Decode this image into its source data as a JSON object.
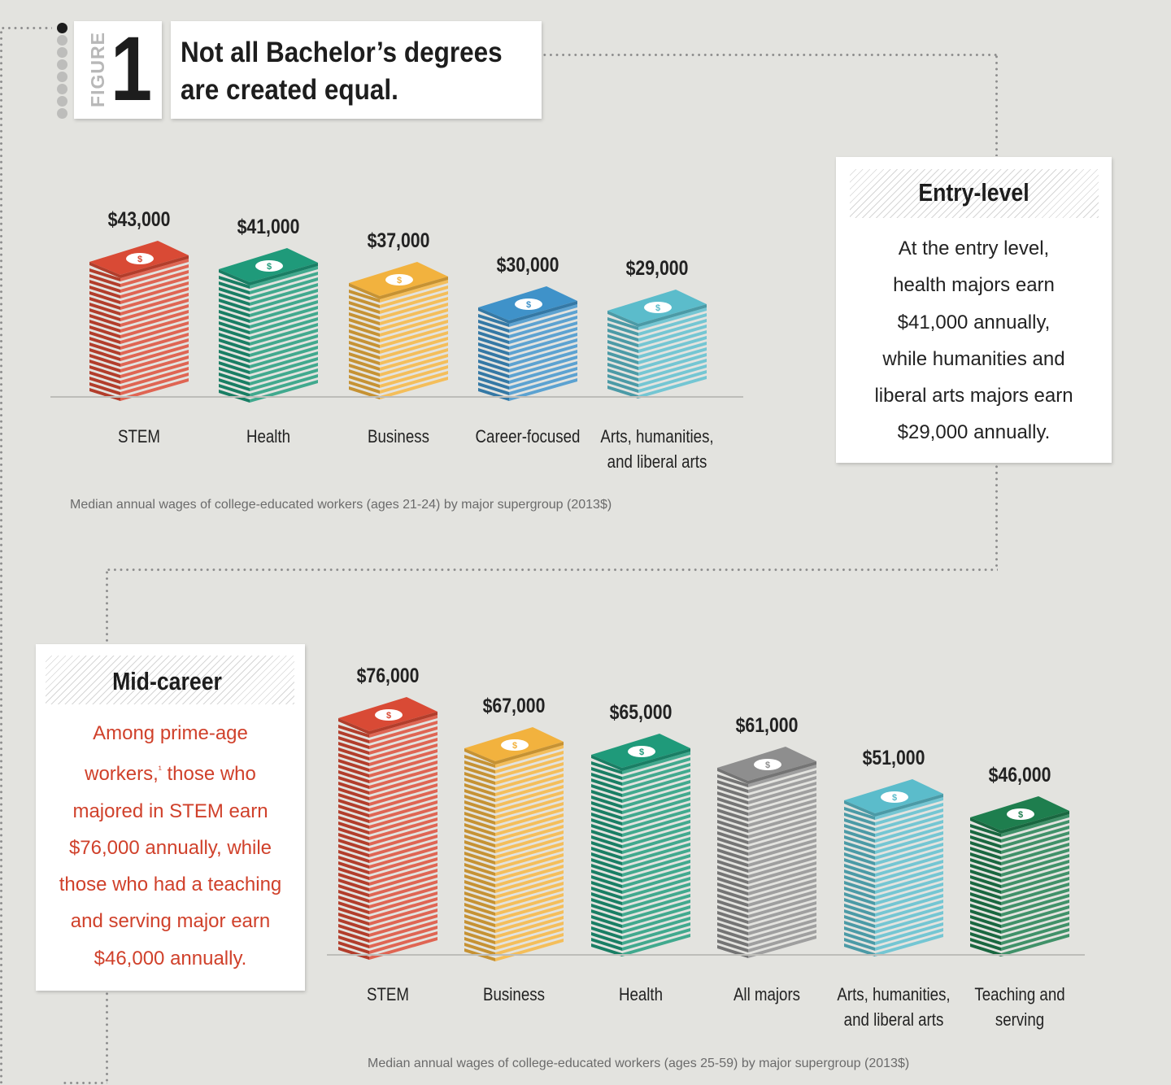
{
  "figure": {
    "label": "FIGURE",
    "number": "1",
    "title_line1": "Not all Bachelor’s degrees",
    "title_line2": "are created equal."
  },
  "entry_box": {
    "heading": "Entry-level",
    "lines": [
      "At the entry level,",
      "health majors earn",
      "$41,000 annually,",
      "while humanities and",
      "liberal arts majors earn",
      "$29,000 annually."
    ]
  },
  "mid_box": {
    "heading": "Mid-career",
    "lines": [
      "Among prime-age",
      "workers,",
      "¹",
      " those who",
      "majored in STEM earn",
      "$76,000 annually, while",
      "those who had a teaching",
      "and serving major earn",
      "$46,000 annually."
    ],
    "text_color": "#d0412b"
  },
  "chart_data": [
    {
      "type": "bar",
      "title": "Entry-level",
      "caption": "Median annual wages of college-educated workers (ages 21-24) by major supergroup (2013$)",
      "categories": [
        "STEM",
        "Health",
        "Business",
        "Career-focused",
        "Arts, humanities, and liberal arts"
      ],
      "category_lines": [
        [
          "STEM"
        ],
        [
          "Health"
        ],
        [
          "Business"
        ],
        [
          "Career-focused"
        ],
        [
          "Arts, humanities,",
          "and liberal arts"
        ]
      ],
      "values": [
        43000,
        41000,
        37000,
        30000,
        29000
      ],
      "value_labels": [
        "$43,000",
        "$41,000",
        "$37,000",
        "$30,000",
        "$29,000"
      ],
      "colors": [
        "#d94a35",
        "#1f9a7a",
        "#f2b23e",
        "#3f92c9",
        "#5bbccb"
      ],
      "xlabel": "",
      "ylabel": "Median annual wage (2013$)",
      "grid": false
    },
    {
      "type": "bar",
      "title": "Mid-career",
      "caption": "Median annual wages of college-educated workers (ages 25-59) by major supergroup (2013$)",
      "categories": [
        "STEM",
        "Business",
        "Health",
        "All majors",
        "Arts, humanities, and liberal arts",
        "Teaching and serving"
      ],
      "category_lines": [
        [
          "STEM"
        ],
        [
          "Business"
        ],
        [
          "Health"
        ],
        [
          "All majors"
        ],
        [
          "Arts, humanities,",
          "and liberal arts"
        ],
        [
          "Teaching and",
          "serving"
        ]
      ],
      "values": [
        76000,
        67000,
        65000,
        61000,
        51000,
        46000
      ],
      "value_labels": [
        "$76,000",
        "$67,000",
        "$65,000",
        "$61,000",
        "$51,000",
        "$46,000"
      ],
      "colors": [
        "#d94a35",
        "#f2b23e",
        "#1f9a7a",
        "#8e8e8e",
        "#5bbccb",
        "#1e7e4e"
      ],
      "xlabel": "",
      "ylabel": "Median annual wage (2013$)",
      "grid": false
    }
  ]
}
